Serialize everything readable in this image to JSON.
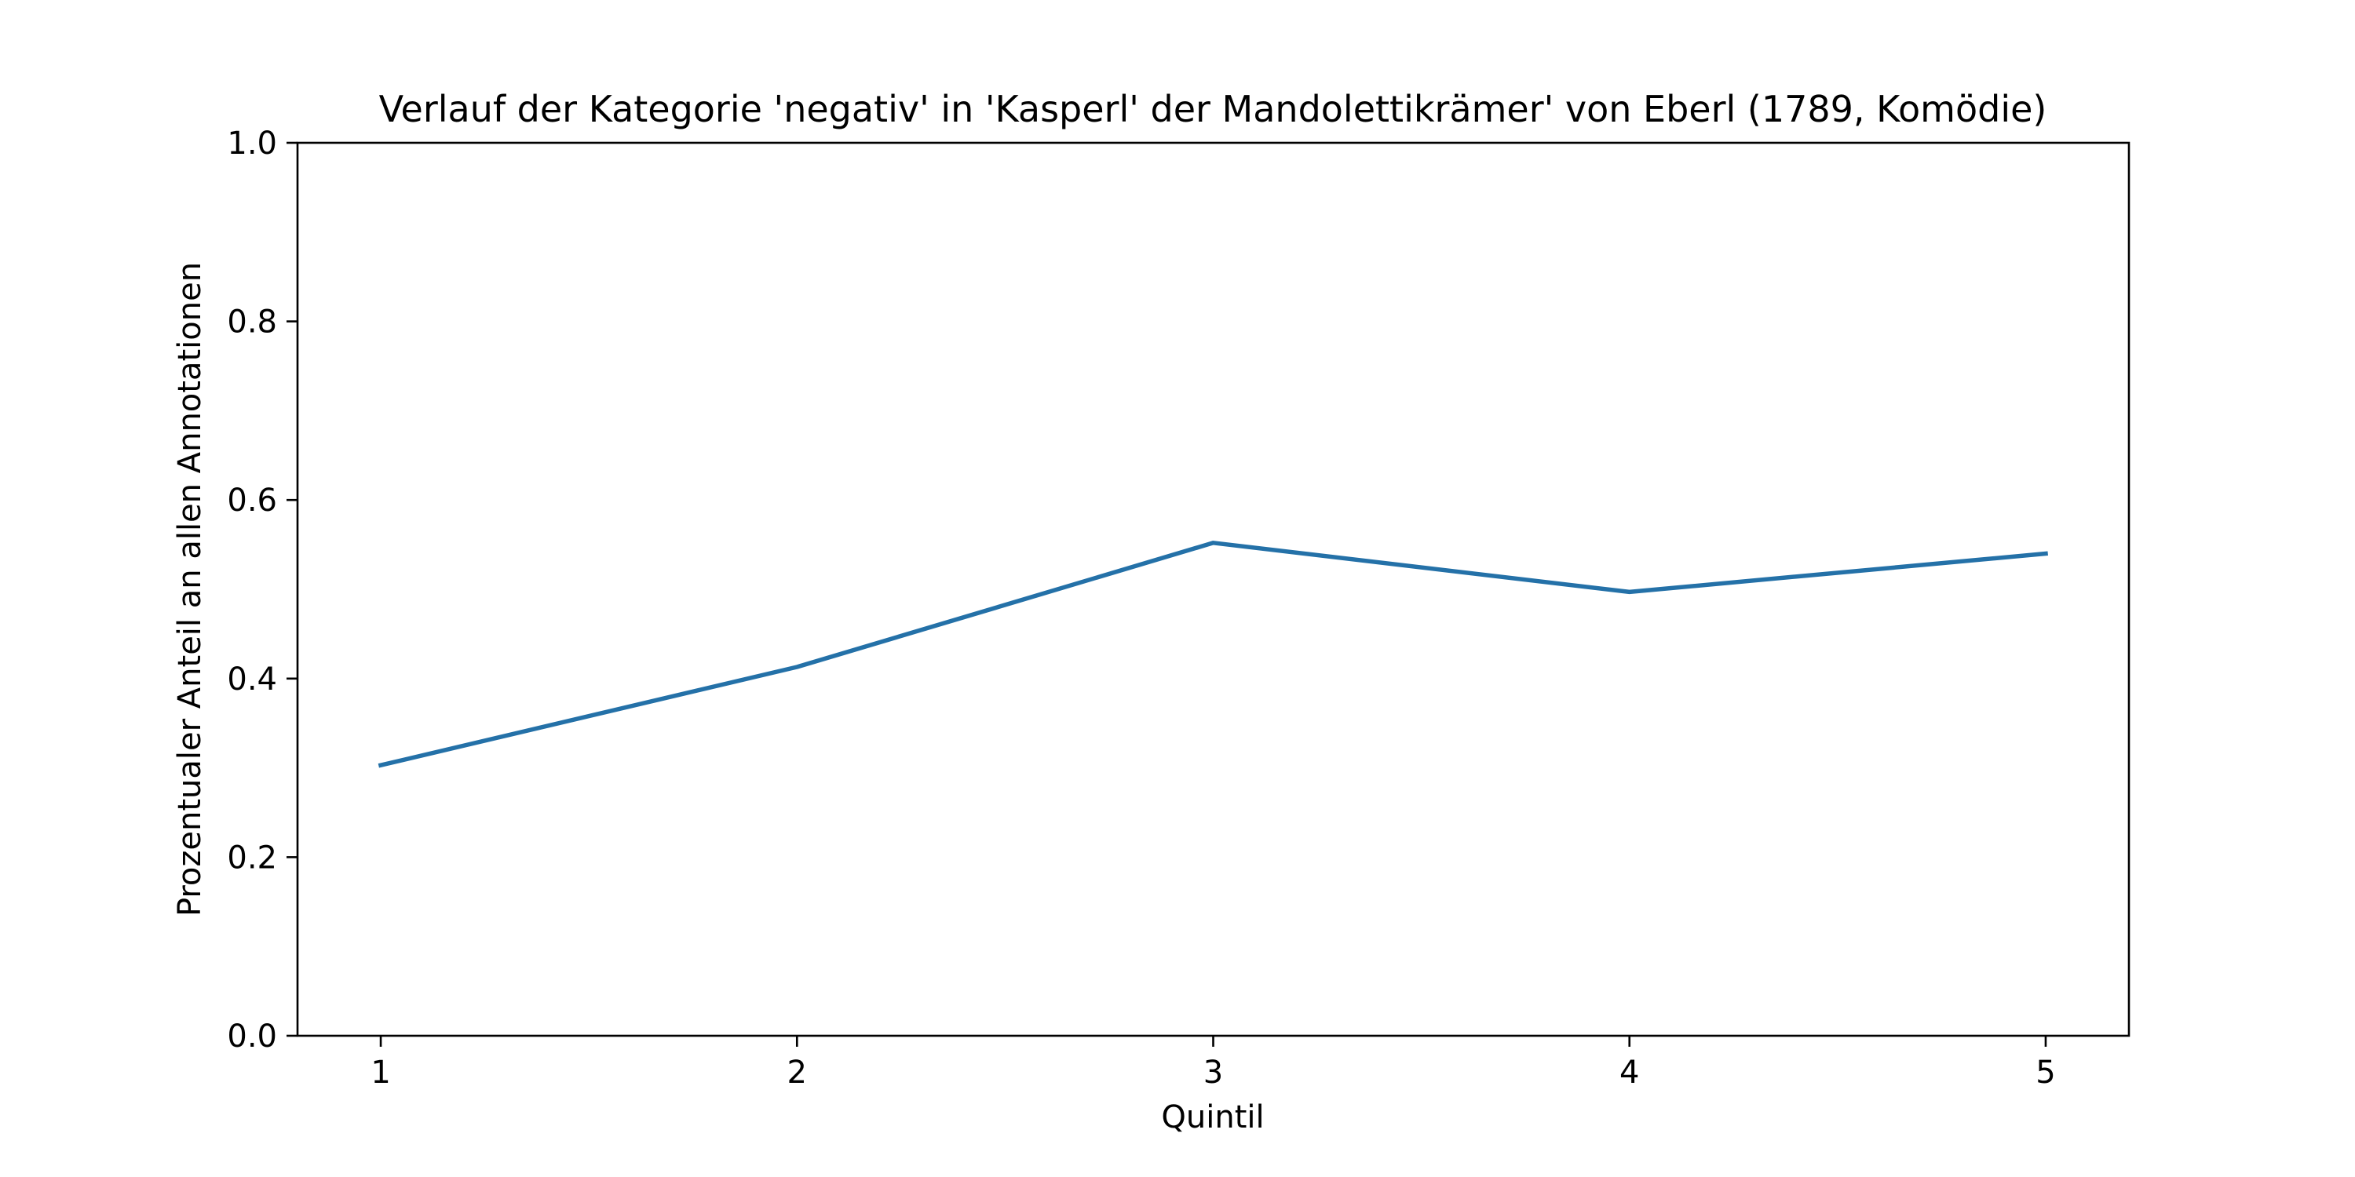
{
  "chart_data": {
    "type": "line",
    "title": "Verlauf der Kategorie 'negativ' in 'Kasperl' der Mandolettikrämer' von Eberl (1789, Komödie)",
    "xlabel": "Quintil",
    "ylabel": "Prozentualer Anteil an allen Annotationen",
    "x": [
      1,
      2,
      3,
      4,
      5
    ],
    "x_ticks": [
      "1",
      "2",
      "3",
      "4",
      "5"
    ],
    "xlim": [
      0.8,
      5.2
    ],
    "ylim": [
      0,
      1
    ],
    "y_ticks": [
      "0.0",
      "0.2",
      "0.4",
      "0.6",
      "0.8",
      "1.0"
    ],
    "grid": false,
    "legend": "none",
    "series": [
      {
        "values": [
          0.303,
          0.413,
          0.552,
          0.497,
          0.54
        ],
        "color": "#2471a8"
      }
    ]
  }
}
